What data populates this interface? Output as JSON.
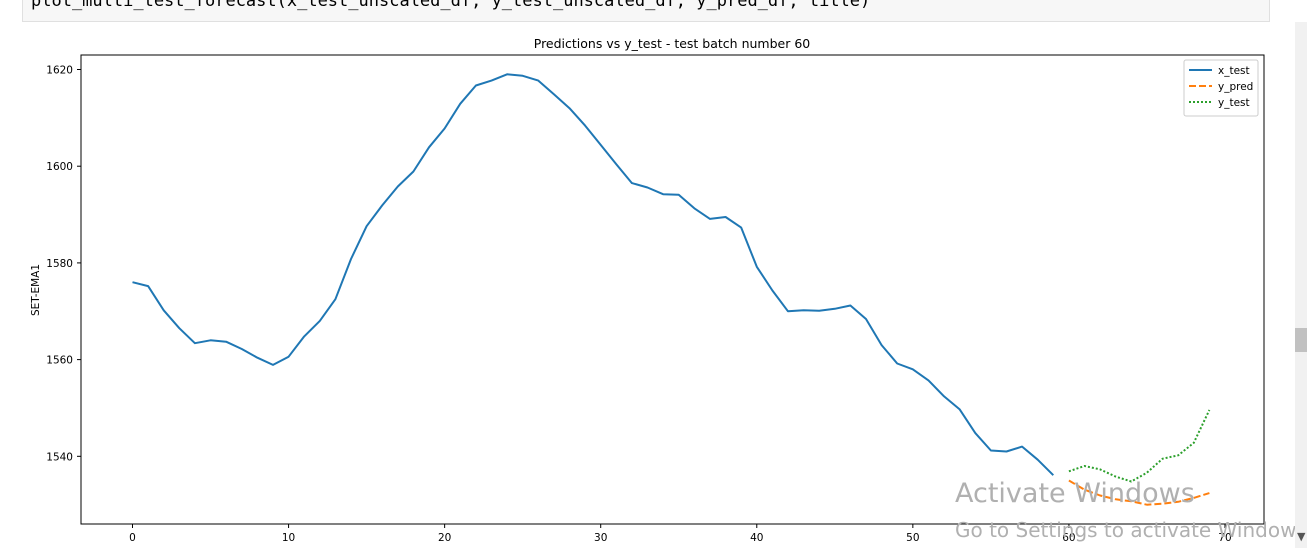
{
  "code_cell": {
    "text": "plot_multi_test_forecast(x_test_unscaled_df, y_test_unscaled_df, y_pred_df, title)"
  },
  "chart_data": {
    "type": "line",
    "title": "Predictions vs y_test - test batch number 60",
    "xlabel": "",
    "ylabel": "SET-EMA1",
    "xlim": [
      -3.3,
      72.5
    ],
    "ylim": [
      1526,
      1623
    ],
    "xticks": [
      0,
      10,
      20,
      30,
      40,
      50,
      60,
      70
    ],
    "yticks": [
      1540,
      1560,
      1580,
      1600,
      1620
    ],
    "grid": false,
    "legend_position": "top-right",
    "series": [
      {
        "name": "x_test",
        "color": "#1f77b4",
        "dash": "solid",
        "x": [
          0,
          1,
          2,
          3,
          4,
          5,
          6,
          7,
          8,
          9,
          10,
          11,
          12,
          13,
          14,
          15,
          16,
          17,
          18,
          19,
          20,
          21,
          22,
          23,
          24,
          25,
          26,
          27,
          28,
          29,
          30,
          31,
          32,
          33,
          34,
          35,
          36,
          37,
          38,
          39,
          40,
          41,
          42,
          43,
          44,
          45,
          46,
          47,
          48,
          49,
          50,
          51,
          52,
          53,
          54,
          55,
          56,
          57,
          58,
          59
        ],
        "y": [
          1576,
          1575.2,
          1570.2,
          1566.5,
          1563.4,
          1564,
          1563.7,
          1562.2,
          1560.4,
          1558.9,
          1560.6,
          1564.8,
          1568,
          1572.5,
          1580.8,
          1587.6,
          1591.9,
          1595.8,
          1598.9,
          1603.9,
          1607.8,
          1612.9,
          1616.7,
          1617.7,
          1619,
          1618.7,
          1617.7,
          1614.9,
          1612,
          1608.4,
          1604.4,
          1600.4,
          1596.5,
          1595.6,
          1594.2,
          1594.1,
          1591.3,
          1589.1,
          1589.5,
          1587.3,
          1579.2,
          1574.3,
          1570,
          1570.2,
          1570.1,
          1570.5,
          1571.2,
          1568.4,
          1563,
          1559.2,
          1558,
          1555.7,
          1552.4,
          1549.7,
          1544.8,
          1541.2,
          1541,
          1542,
          1539.3,
          1536.1
        ]
      },
      {
        "name": "y_pred",
        "color": "#ff7f0e",
        "dash": "dashed",
        "x": [
          60,
          61,
          62,
          63,
          64,
          65,
          66,
          67,
          68,
          69
        ],
        "y": [
          1535,
          1533.1,
          1531.9,
          1531.1,
          1530.7,
          1530,
          1530.2,
          1530.6,
          1531.4,
          1532.4
        ]
      },
      {
        "name": "y_test",
        "color": "#2ca02c",
        "dash": "dotted",
        "x": [
          60,
          61,
          62,
          63,
          64,
          65,
          66,
          67,
          68,
          69
        ],
        "y": [
          1536.9,
          1538,
          1537.3,
          1535.8,
          1534.8,
          1536.6,
          1539.5,
          1540.2,
          1542.8,
          1549.6
        ]
      }
    ]
  },
  "watermark": {
    "title": "Activate Windows",
    "subtitle": "Go to Settings to activate Windows."
  }
}
